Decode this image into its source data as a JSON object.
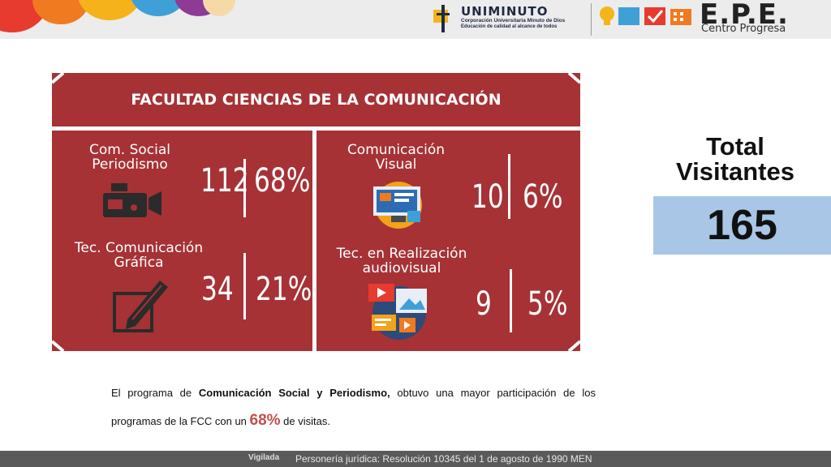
{
  "header": {
    "university_name": "UNIMINUTO",
    "university_line1": "Corporación Universitaria Minuto de Dios",
    "university_line2": "Educación de calidad al alcance de todos",
    "epe_title": "E.P.E.",
    "epe_subtitle": "Centro Progresa"
  },
  "panel": {
    "title": "FACULTAD CIENCIAS DE LA COMUNICACIÓN",
    "cells": [
      {
        "label_line1": "Com. Social",
        "label_line2": "Periodismo",
        "count": "112",
        "percent": "68%",
        "icon": "video-camera-icon"
      },
      {
        "label_line1": "Comunicación",
        "label_line2": "Visual",
        "count": "10",
        "percent": "6%",
        "icon": "computer-design-icon"
      },
      {
        "label_line1": "Tec. Comunicación",
        "label_line2": "Gráfica",
        "count": "34",
        "percent": "21%",
        "icon": "pencil-drawing-icon"
      },
      {
        "label_line1": "Tec. en Realización",
        "label_line2": "audiovisual",
        "count": "9",
        "percent": "5%",
        "icon": "multimedia-icon"
      }
    ],
    "background_color": "#a63235"
  },
  "total": {
    "label_line1": "Total",
    "label_line2": "Visitantes",
    "value": "165",
    "box_color": "#a9c6e6"
  },
  "paragraph": {
    "part1": "El programa de ",
    "bold": "Comunicación Social y Periodismo,",
    "part2": " obtuvo una mayor participación de los programas de la FCC con un ",
    "highlight": "68%",
    "part3": " de visitas."
  },
  "footer": {
    "badge": "Vigilada",
    "text": "Personería jurídica: Resolución 10345 del 1 de agosto de 1990 MEN"
  }
}
